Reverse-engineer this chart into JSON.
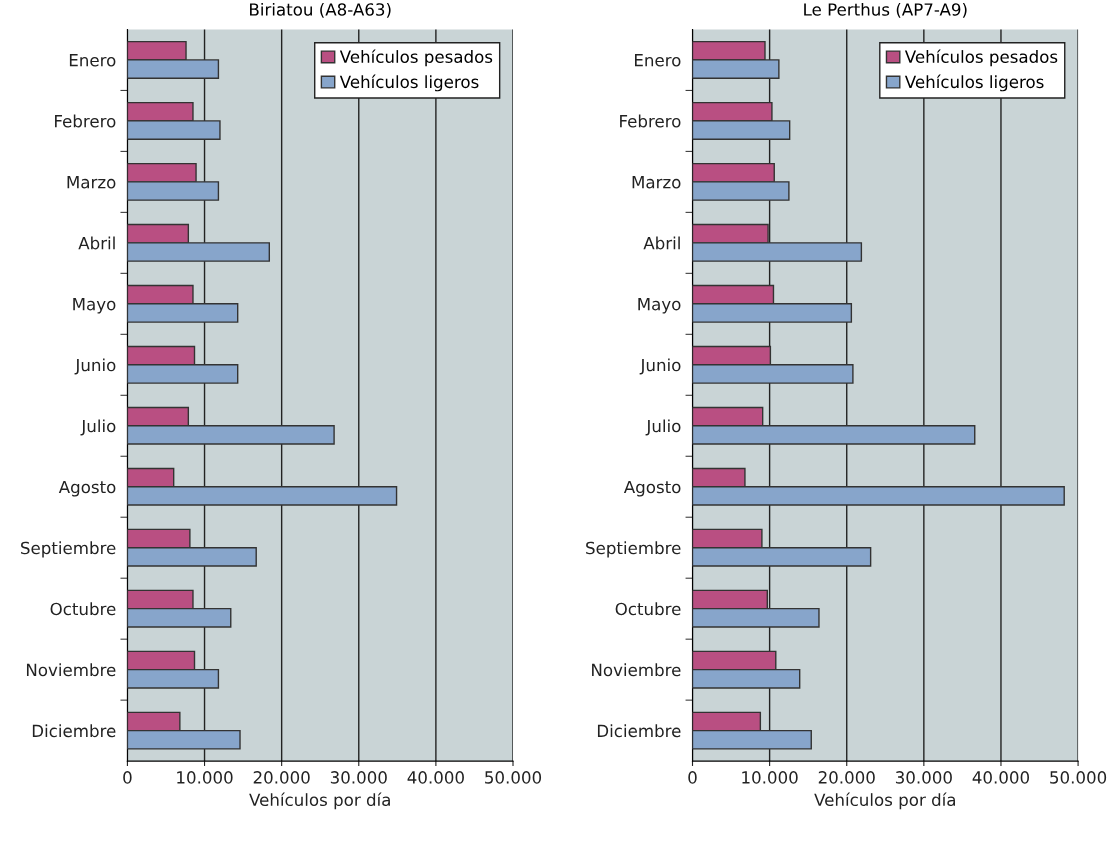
{
  "chart_data": [
    {
      "type": "bar",
      "orientation": "horizontal",
      "title": "Biriatou (A8-A63)",
      "xlabel": "Vehículos por día",
      "categories": [
        "Enero",
        "Febrero",
        "Marzo",
        "Abril",
        "Mayo",
        "Junio",
        "Julio",
        "Agosto",
        "Septiembre",
        "Octubre",
        "Noviembre",
        "Diciembre"
      ],
      "series": [
        {
          "name": "Vehículos pesados",
          "color": "#b94f82",
          "values": [
            7600,
            8500,
            8900,
            7900,
            8500,
            8700,
            7900,
            6000,
            8100,
            8500,
            8700,
            6800
          ]
        },
        {
          "name": "Vehículos ligeros",
          "color": "#87a5cb",
          "values": [
            11800,
            12000,
            11800,
            18400,
            14300,
            14300,
            26800,
            34900,
            16700,
            13400,
            11800,
            14600
          ]
        }
      ],
      "xlim": [
        0,
        50000
      ],
      "xticks": [
        0,
        {
          "value": 10000,
          "label": "10.000"
        },
        {
          "value": 20000,
          "label": "20.000"
        },
        {
          "value": 30000,
          "label": "30.000"
        },
        {
          "value": 40000,
          "label": "40.000"
        },
        {
          "value": 50000,
          "label": "50.000"
        }
      ],
      "grid": "x",
      "legend": "top right"
    },
    {
      "type": "bar",
      "orientation": "horizontal",
      "title": "Le Perthus (AP7-A9)",
      "xlabel": "Vehículos por día",
      "categories": [
        "Enero",
        "Febrero",
        "Marzo",
        "Abril",
        "Mayo",
        "Junio",
        "Julio",
        "Agosto",
        "Septiembre",
        "Octubre",
        "Noviembre",
        "Diciembre"
      ],
      "series": [
        {
          "name": "Vehículos pesados",
          "color": "#b94f82",
          "values": [
            9400,
            10300,
            10600,
            9800,
            10500,
            10100,
            9100,
            6800,
            9000,
            9700,
            10800,
            8800
          ]
        },
        {
          "name": "Vehículos ligeros",
          "color": "#87a5cb",
          "values": [
            11200,
            12600,
            12500,
            21900,
            20600,
            20800,
            36600,
            48200,
            23100,
            16400,
            13900,
            15400
          ]
        }
      ],
      "xlim": [
        0,
        50000
      ],
      "xticks": [
        0,
        {
          "value": 10000,
          "label": "10.000"
        },
        {
          "value": 20000,
          "label": "20.000"
        },
        {
          "value": 30000,
          "label": "30.000"
        },
        {
          "value": 40000,
          "label": "40.000"
        },
        {
          "value": 50000,
          "label": "50.000"
        }
      ],
      "grid": "x",
      "legend": "top right"
    }
  ]
}
